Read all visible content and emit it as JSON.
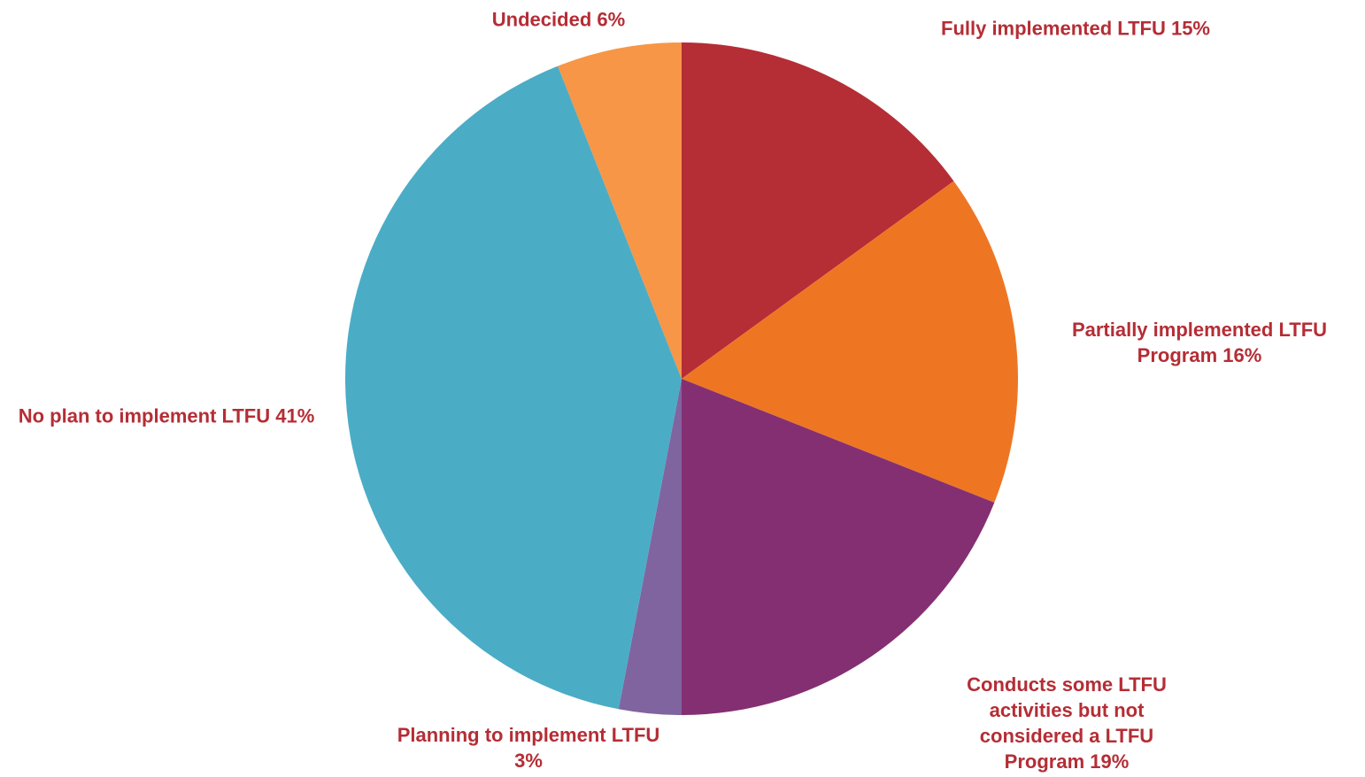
{
  "chart_data": {
    "type": "pie",
    "categories": [
      "Fully implemented LTFU",
      "Partially implemented LTFU Program",
      "Conducts some LTFU activities but not considered a LTFU Program",
      "Planning to implement LTFU",
      "No plan to implement LTFU",
      "Undecided"
    ],
    "values": [
      15,
      16,
      19,
      3,
      41,
      6
    ],
    "value_labels": [
      "15%",
      "16%",
      "19%",
      "3%",
      "41%",
      "6%"
    ],
    "colors": [
      "#b52d35",
      "#ee7623",
      "#842f72",
      "#8064a0",
      "#4bacc6",
      "#f79646"
    ]
  }
}
